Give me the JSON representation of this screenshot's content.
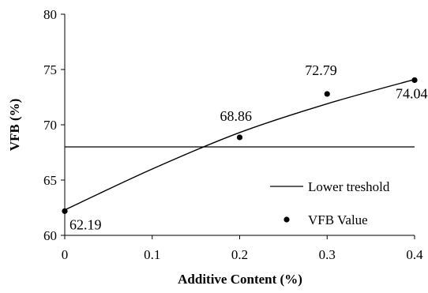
{
  "chart_data": {
    "type": "scatter",
    "xlabel": "Additive Content (%)",
    "ylabel": "VFB (%)",
    "xlim": [
      0,
      0.4
    ],
    "ylim": [
      60,
      80
    ],
    "x_ticks": [
      "0",
      "0.1",
      "0.2",
      "0.3",
      "0.4"
    ],
    "y_ticks": [
      "60",
      "65",
      "70",
      "75",
      "80"
    ],
    "grid": false,
    "legend_position": "bottom-right",
    "series": [
      {
        "name": "VFB Value",
        "kind": "scatter",
        "x": [
          0,
          0.2,
          0.3,
          0.4
        ],
        "y": [
          62.19,
          68.86,
          72.79,
          74.04
        ],
        "labels": [
          "62.19",
          "68.86",
          "72.79",
          "74.04"
        ]
      },
      {
        "name": "Lower treshold",
        "kind": "hline",
        "y": 68
      }
    ],
    "trendline": {
      "x": [
        0,
        0.1,
        0.2,
        0.3,
        0.4
      ],
      "y": [
        62.3,
        66.0,
        69.3,
        71.9,
        74.1
      ]
    }
  }
}
